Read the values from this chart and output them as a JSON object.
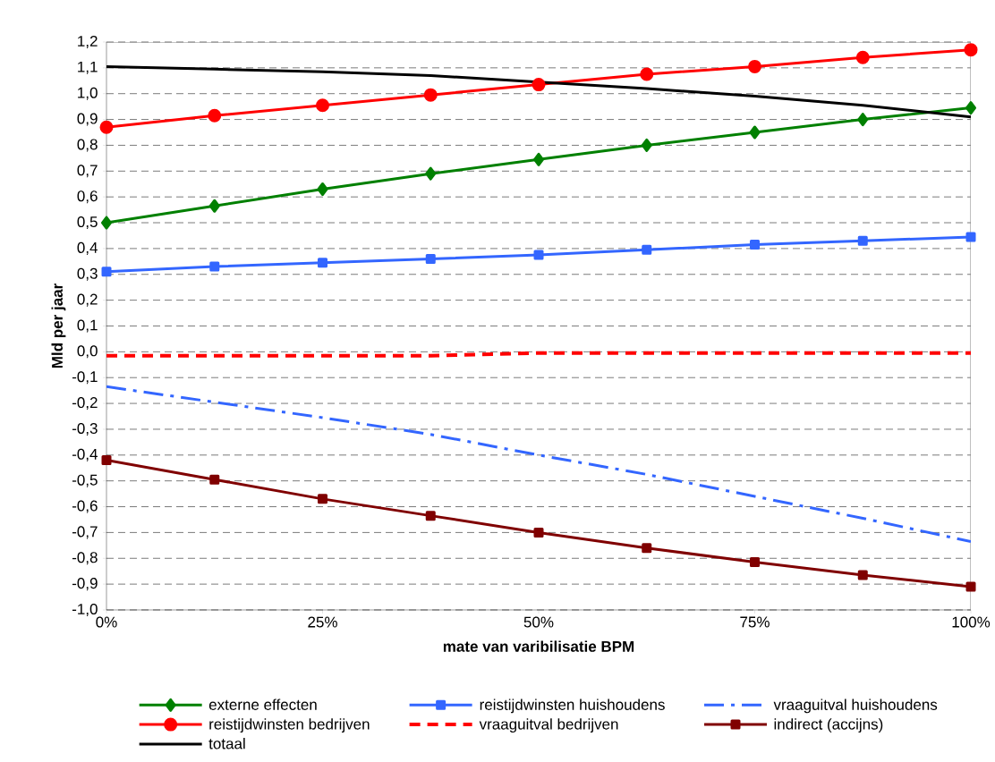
{
  "chart_data": {
    "type": "line",
    "xlabel": "mate van varibilisatie BPM",
    "ylabel": "Mld per jaar",
    "x": [
      0,
      12.5,
      25,
      37.5,
      50,
      62.5,
      75,
      87.5,
      100
    ],
    "xlim": [
      0,
      100
    ],
    "xticks": [
      {
        "value": 0,
        "label": "0%"
      },
      {
        "value": 25,
        "label": "25%"
      },
      {
        "value": 50,
        "label": "50%"
      },
      {
        "value": 75,
        "label": "75%"
      },
      {
        "value": 100,
        "label": "100%"
      }
    ],
    "ylim": [
      -1.0,
      1.2
    ],
    "yticks": [
      {
        "value": -1.0,
        "label": "-1,0"
      },
      {
        "value": -0.9,
        "label": "-0,9"
      },
      {
        "value": -0.8,
        "label": "-0,8"
      },
      {
        "value": -0.7,
        "label": "-0,7"
      },
      {
        "value": -0.6,
        "label": "-0,6"
      },
      {
        "value": -0.5,
        "label": "-0,5"
      },
      {
        "value": -0.4,
        "label": "-0,4"
      },
      {
        "value": -0.3,
        "label": "-0,3"
      },
      {
        "value": -0.2,
        "label": "-0,2"
      },
      {
        "value": -0.1,
        "label": "-0,1"
      },
      {
        "value": 0,
        "label": "0,0"
      },
      {
        "value": 0.1,
        "label": "0,1"
      },
      {
        "value": 0.2,
        "label": "0,2"
      },
      {
        "value": 0.3,
        "label": "0,3"
      },
      {
        "value": 0.4,
        "label": "0,4"
      },
      {
        "value": 0.5,
        "label": "0,5"
      },
      {
        "value": 0.6,
        "label": "0,6"
      },
      {
        "value": 0.7,
        "label": "0,7"
      },
      {
        "value": 0.8,
        "label": "0,8"
      },
      {
        "value": 0.9,
        "label": "0,9"
      },
      {
        "value": 1.0,
        "label": "1,0"
      },
      {
        "value": 1.1,
        "label": "1,1"
      },
      {
        "value": 1.2,
        "label": "1,2"
      }
    ],
    "grid": "y",
    "legend": "bottom",
    "series": [
      {
        "name": "externe effecten",
        "color": "#008000",
        "marker": "diamond",
        "line_style": "solid",
        "values": [
          0.5,
          0.565,
          0.63,
          0.69,
          0.745,
          0.8,
          0.85,
          0.9,
          0.945
        ]
      },
      {
        "name": "reistijdwinsten huishoudens",
        "color": "#3366ff",
        "marker": "square",
        "line_style": "solid",
        "values": [
          0.31,
          0.33,
          0.345,
          0.36,
          0.375,
          0.395,
          0.415,
          0.43,
          0.445
        ]
      },
      {
        "name": "vraaguitval huishoudens",
        "color": "#3366ff",
        "marker": "none",
        "line_style": "dashdot",
        "values": [
          -0.135,
          -0.195,
          -0.255,
          -0.32,
          -0.4,
          -0.475,
          -0.56,
          -0.645,
          -0.735
        ]
      },
      {
        "name": "reistijdwinsten bedrijven",
        "color": "#ff0000",
        "marker": "circle",
        "line_style": "solid",
        "values": [
          0.87,
          0.915,
          0.955,
          0.995,
          1.035,
          1.075,
          1.105,
          1.14,
          1.17
        ]
      },
      {
        "name": "vraaguitval bedrijven",
        "color": "#ff0000",
        "marker": "none",
        "line_style": "dashed",
        "values": [
          -0.015,
          -0.015,
          -0.015,
          -0.015,
          -0.005,
          -0.005,
          -0.005,
          -0.005,
          -0.005
        ]
      },
      {
        "name": "indirect (accijns)",
        "color": "#800000",
        "marker": "square",
        "line_style": "solid",
        "values": [
          -0.42,
          -0.495,
          -0.57,
          -0.635,
          -0.7,
          -0.76,
          -0.815,
          -0.865,
          -0.91
        ]
      },
      {
        "name": "totaal",
        "color": "#000000",
        "marker": "none",
        "line_style": "solid",
        "values": [
          1.105,
          1.095,
          1.085,
          1.07,
          1.045,
          1.02,
          0.99,
          0.955,
          0.91
        ]
      }
    ]
  }
}
